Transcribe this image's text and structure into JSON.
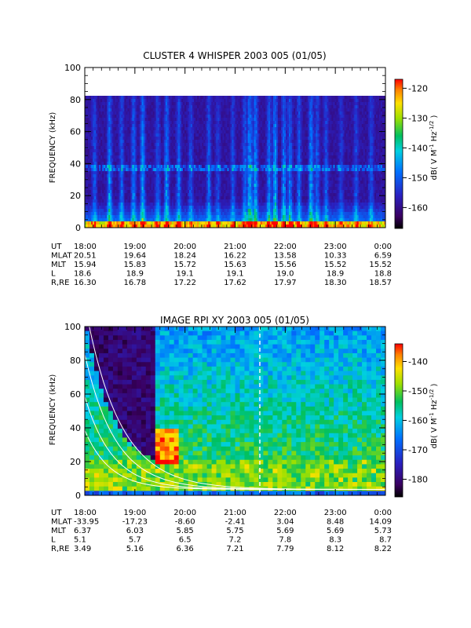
{
  "chart_data": [
    {
      "type": "heatmap",
      "title": "CLUSTER 4 WHISPER 2003 005 (01/05)",
      "ylabel": "FREQUENCY (kHz)",
      "ylim": [
        0,
        100
      ],
      "y_ticks": [
        "0",
        "20",
        "40",
        "60",
        "80",
        "100"
      ],
      "x_ticks": [
        "18:00",
        "19:00",
        "20:00",
        "21:00",
        "22:00",
        "23:00",
        "0:00"
      ],
      "colorbar": {
        "label": "dB( V M^-1 Hz^-1/2 )",
        "range": [
          -167,
          -117
        ],
        "ticks": [
          "-120",
          "-130",
          "-140",
          "-150",
          "-160"
        ],
        "tick_values": [
          -120,
          -130,
          -140,
          -150,
          -160
        ]
      },
      "ephemeris": [
        {
          "label": "UT",
          "values": [
            "18:00",
            "19:00",
            "20:00",
            "21:00",
            "22:00",
            "23:00",
            "0:00"
          ]
        },
        {
          "label": "MLAT",
          "values": [
            "20.51",
            "19.64",
            "18.24",
            "16.22",
            "13.58",
            "10.33",
            "6.59"
          ]
        },
        {
          "label": "MLT",
          "values": [
            "15.94",
            "15.83",
            "15.72",
            "15.63",
            "15.56",
            "15.52",
            "15.52"
          ]
        },
        {
          "label": "L",
          "values": [
            "18.6",
            "18.9",
            "19.1",
            "19.1",
            "19.0",
            "18.9",
            "18.8"
          ]
        },
        {
          "label": "R,RE",
          "values": [
            "16.30",
            "16.78",
            "17.22",
            "17.62",
            "17.97",
            "18.30",
            "18.57"
          ]
        }
      ]
    },
    {
      "type": "heatmap",
      "title": "IMAGE RPI XY 2003 005 (01/05)",
      "ylabel": "FREQUENCY (kHz)",
      "ylim": [
        0,
        100
      ],
      "y_ticks": [
        "0",
        "20",
        "40",
        "60",
        "80",
        "100"
      ],
      "x_ticks": [
        "18:00",
        "19:00",
        "20:00",
        "21:00",
        "22:00",
        "23:00",
        "0:00"
      ],
      "colorbar": {
        "label": "dB( V M^-1 Hz^-1/2 )",
        "range": [
          -186,
          -134
        ],
        "ticks": [
          "-140",
          "-150",
          "-160",
          "-170",
          "-180"
        ],
        "tick_values": [
          -140,
          -150,
          -160,
          -170,
          -180
        ]
      },
      "ephemeris": [
        {
          "label": "UT",
          "values": [
            "18:00",
            "19:00",
            "20:00",
            "21:00",
            "22:00",
            "23:00",
            "0:00"
          ]
        },
        {
          "label": "MLAT",
          "values": [
            "-33.95",
            "-17.23",
            "-8.60",
            "-2.41",
            "3.04",
            "8.48",
            "14.09"
          ]
        },
        {
          "label": "MLT",
          "values": [
            "6.37",
            "6.03",
            "5.85",
            "5.75",
            "5.69",
            "5.69",
            "5.73"
          ]
        },
        {
          "label": "L",
          "values": [
            "5.1",
            "5.7",
            "6.5",
            "7.2",
            "7.8",
            "8.3",
            "8.7"
          ]
        },
        {
          "label": "R,RE",
          "values": [
            "3.49",
            "5.16",
            "6.36",
            "7.21",
            "7.79",
            "8.12",
            "8.22"
          ]
        }
      ]
    }
  ]
}
